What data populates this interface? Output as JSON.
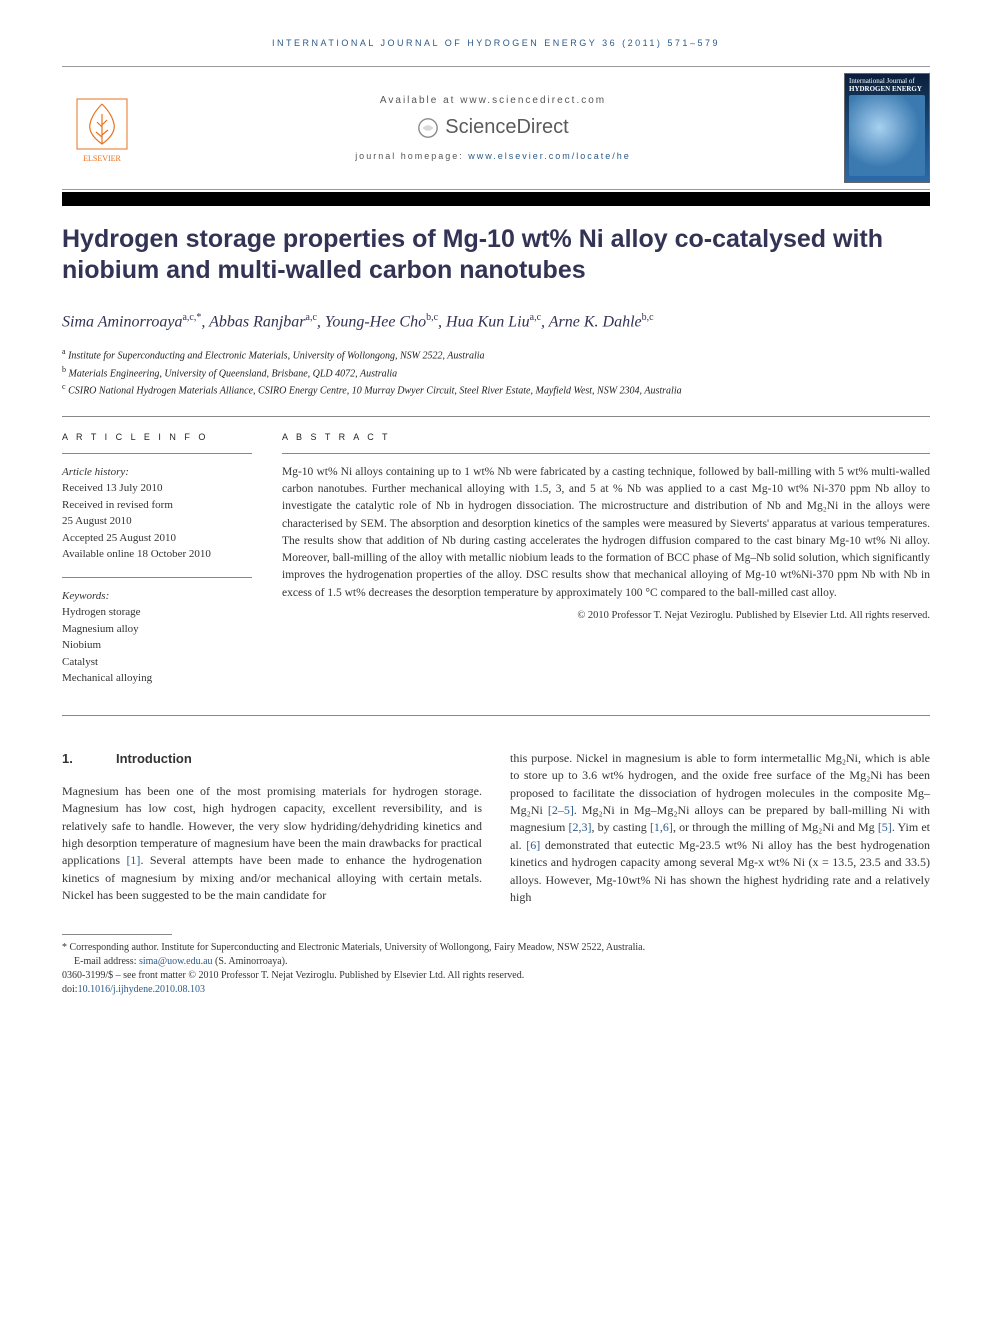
{
  "journal_header": "INTERNATIONAL JOURNAL OF HYDROGEN ENERGY 36 (2011) 571–579",
  "available_at": "Available at www.sciencedirect.com",
  "sd_brand": "ScienceDirect",
  "homepage_label": "journal homepage: ",
  "homepage_url": "www.elsevier.com/locate/he",
  "elsevier_label": "ELSEVIER",
  "cover": {
    "journal_name": "International Journal of",
    "journal_title": "HYDROGEN ENERGY"
  },
  "title": "Hydrogen storage properties of Mg-10 wt% Ni alloy co-catalysed with niobium and multi-walled carbon nanotubes",
  "authors_html": "Sima Aminorroaya",
  "authors": [
    {
      "name": "Sima Aminorroaya",
      "sup": "a,c,*"
    },
    {
      "name": "Abbas Ranjbar",
      "sup": "a,c"
    },
    {
      "name": "Young-Hee Cho",
      "sup": "b,c"
    },
    {
      "name": "Hua Kun Liu",
      "sup": "a,c"
    },
    {
      "name": "Arne K. Dahle",
      "sup": "b,c"
    }
  ],
  "affiliations": [
    {
      "sup": "a",
      "text": "Institute for Superconducting and Electronic Materials, University of Wollongong, NSW 2522, Australia"
    },
    {
      "sup": "b",
      "text": "Materials Engineering, University of Queensland, Brisbane, QLD 4072, Australia"
    },
    {
      "sup": "c",
      "text": "CSIRO National Hydrogen Materials Alliance, CSIRO Energy Centre, 10 Murray Dwyer Circuit, Steel River Estate, Mayfield West, NSW 2304, Australia"
    }
  ],
  "article_info_heading": "A R T I C L E   I N F O",
  "abstract_heading": "A B S T R A C T",
  "history_label": "Article history:",
  "history": [
    "Received 13 July 2010",
    "Received in revised form",
    "25 August 2010",
    "Accepted 25 August 2010",
    "Available online 18 October 2010"
  ],
  "keywords_label": "Keywords:",
  "keywords": [
    "Hydrogen storage",
    "Magnesium alloy",
    "Niobium",
    "Catalyst",
    "Mechanical alloying"
  ],
  "abstract": "Mg-10 wt% Ni alloys containing up to 1 wt% Nb were fabricated by a casting technique, followed by ball-milling with 5 wt% multi-walled carbon nanotubes. Further mechanical alloying with 1.5, 3, and 5 at % Nb was applied to a cast Mg-10 wt% Ni-370 ppm Nb alloy to investigate the catalytic role of Nb in hydrogen dissociation. The microstructure and distribution of Nb and Mg₂Ni in the alloys were characterised by SEM. The absorption and desorption kinetics of the samples were measured by Sieverts' apparatus at various temperatures. The results show that addition of Nb during casting accelerates the hydrogen diffusion compared to the cast binary Mg-10 wt% Ni alloy. Moreover, ball-milling of the alloy with metallic niobium leads to the formation of BCC phase of Mg–Nb solid solution, which significantly improves the hydrogenation properties of the alloy. DSC results show that mechanical alloying of Mg-10 wt%Ni-370 ppm Nb with Nb in excess of 1.5 wt% decreases the desorption temperature by approximately 100 °C compared to the ball-milled cast alloy.",
  "copyright": "© 2010 Professor T. Nejat Veziroglu. Published by Elsevier Ltd. All rights reserved.",
  "section1": {
    "num": "1.",
    "title": "Introduction"
  },
  "body_left": "Magnesium has been one of the most promising materials for hydrogen storage. Magnesium has low cost, high hydrogen capacity, excellent reversibility, and is relatively safe to handle. However, the very slow hydriding/dehydriding kinetics and high desorption temperature of magnesium have been the main drawbacks for practical applications [1]. Several attempts have been made to enhance the hydrogenation kinetics of magnesium by mixing and/or mechanical alloying with certain metals. Nickel has been suggested to be the main candidate for",
  "body_right": "this purpose. Nickel in magnesium is able to form intermetallic Mg₂Ni, which is able to store up to 3.6 wt% hydrogen, and the oxide free surface of the Mg₂Ni has been proposed to facilitate the dissociation of hydrogen molecules in the composite Mg–Mg₂Ni [2–5]. Mg₂Ni in Mg–Mg₂Ni alloys can be prepared by ball-milling Ni with magnesium [2,3], by casting [1,6], or through the milling of Mg₂Ni and Mg [5]. Yim et al. [6] demonstrated that eutectic Mg-23.5 wt% Ni alloy has the best hydrogenation kinetics and hydrogen capacity among several Mg-x wt% Ni (x = 13.5, 23.5 and 33.5) alloys. However, Mg-10wt% Ni has shown the highest hydriding rate and a relatively high",
  "footnotes": {
    "corresponding": "* Corresponding author. Institute for Superconducting and Electronic Materials, University of Wollongong, Fairy Meadow, NSW 2522, Australia.",
    "email_label": "E-mail address: ",
    "email": "sima@uow.edu.au",
    "email_suffix": " (S. Aminorroaya).",
    "issn": "0360-3199/$ – see front matter © 2010 Professor T. Nejat Veziroglu. Published by Elsevier Ltd. All rights reserved.",
    "doi_label": "doi:",
    "doi": "10.1016/j.ijhydene.2010.08.103"
  },
  "colors": {
    "link": "#2b5a8a",
    "title": "#333355",
    "orange": "#e9711c",
    "text": "#333333",
    "rule": "#888888"
  }
}
